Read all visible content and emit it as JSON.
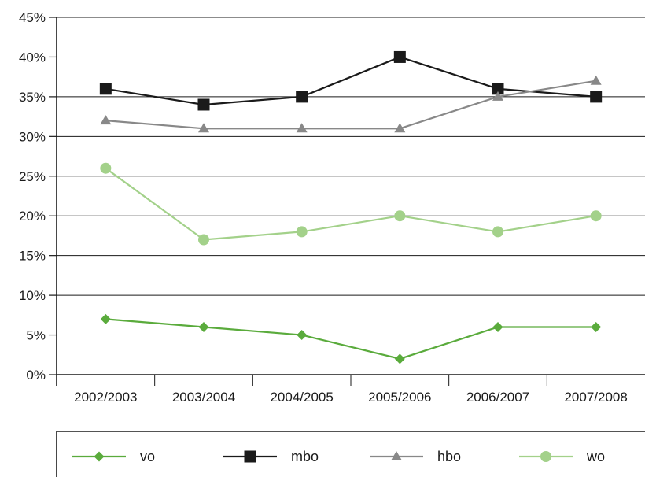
{
  "chart_data": {
    "type": "line",
    "categories": [
      "2002/2003",
      "2003/2004",
      "2004/2005",
      "2005/2006",
      "2006/2007",
      "2007/2008"
    ],
    "y_ticks": [
      "0%",
      "5%",
      "10%",
      "15%",
      "20%",
      "25%",
      "30%",
      "35%",
      "40%",
      "45%"
    ],
    "ylim": [
      0,
      45
    ],
    "y_unit": "%",
    "grid": true,
    "legend_position": "bottom",
    "series": [
      {
        "name": "vo",
        "values": [
          7,
          6,
          5,
          2,
          6,
          6
        ],
        "color": "#5aab3c",
        "marker": "diamond"
      },
      {
        "name": "mbo",
        "values": [
          36,
          34,
          35,
          40,
          36,
          35
        ],
        "color": "#1a1a1a",
        "marker": "square"
      },
      {
        "name": "hbo",
        "values": [
          32,
          31,
          31,
          31,
          35,
          37
        ],
        "color": "#888888",
        "marker": "triangle"
      },
      {
        "name": "wo",
        "values": [
          26,
          17,
          18,
          20,
          18,
          20
        ],
        "color": "#a3d18a",
        "marker": "circle"
      }
    ]
  }
}
